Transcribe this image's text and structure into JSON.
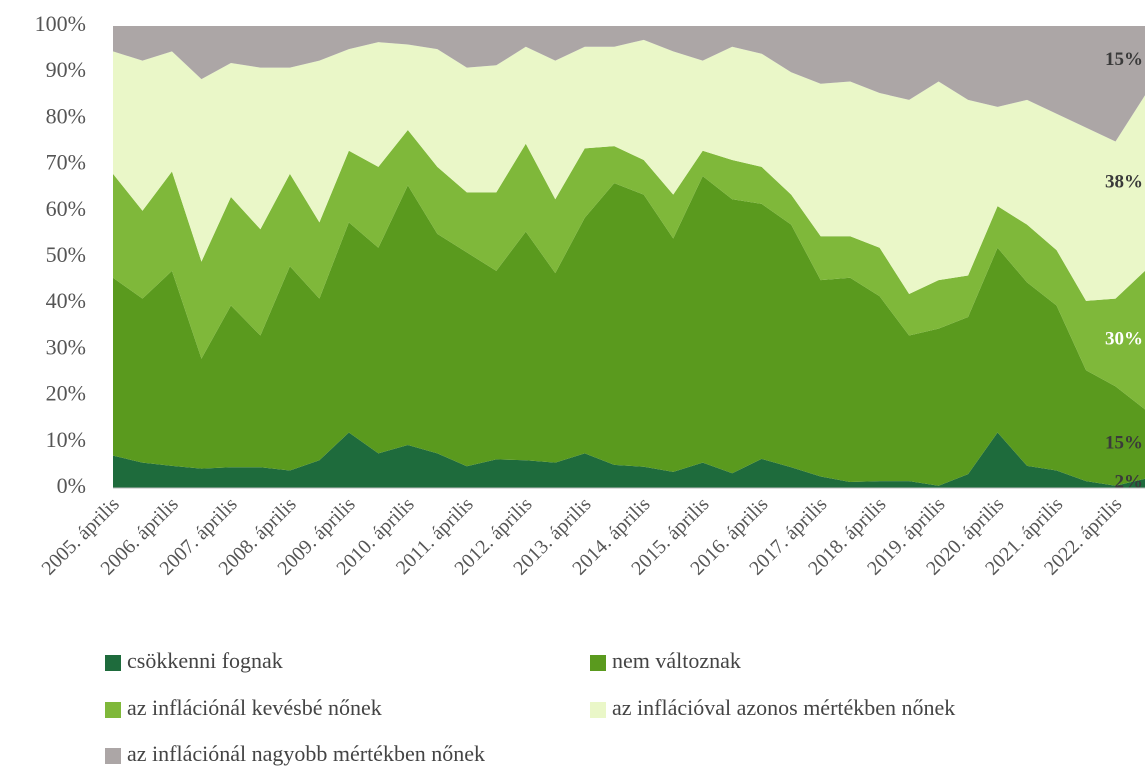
{
  "chart_data": {
    "type": "stacked_area",
    "categories": [
      "2005. április",
      null,
      "2006. április",
      null,
      "2007. április",
      null,
      "2008. április",
      null,
      "2009. április",
      null,
      "2010. április",
      null,
      "2011. április",
      null,
      "2012. április",
      null,
      "2013. április",
      null,
      "2014. április",
      null,
      "2015. április",
      null,
      "2016. április",
      null,
      "2017. április",
      null,
      "2018. április",
      null,
      "2019. április",
      null,
      "2020. április",
      null,
      "2021. április",
      null,
      "2022. április",
      null
    ],
    "series": [
      {
        "name": "csökkenni fognak",
        "color": "#1e6b3c",
        "label_color": "#3a3a3a",
        "values": [
          7,
          5.5,
          4.8,
          4.2,
          4.5,
          4.5,
          3.8,
          6,
          12,
          7.5,
          9.3,
          7.5,
          4.7,
          6.2,
          6,
          5.5,
          7.5,
          5,
          4.6,
          3.5,
          5.5,
          3.2,
          6.3,
          4.5,
          2.5,
          1.3,
          1.5,
          1.5,
          0.5,
          3,
          12,
          4.8,
          3.8,
          1.5,
          0.5,
          2
        ],
        "value_labels": [
          null,
          null,
          null,
          null,
          null,
          null,
          null,
          null,
          null,
          null,
          null,
          null,
          null,
          null,
          null,
          null,
          null,
          null,
          null,
          null,
          null,
          null,
          null,
          null,
          null,
          null,
          null,
          null,
          null,
          null,
          null,
          null,
          null,
          null,
          null,
          "2%"
        ]
      },
      {
        "name": "nem változnak",
        "color": "#5a9a1e",
        "label_color": "#3a3a3a",
        "values": [
          38.5,
          35.5,
          42.2,
          23.8,
          35,
          28.5,
          44.2,
          35,
          45.5,
          44.5,
          56.2,
          47.5,
          46.3,
          40.8,
          49.5,
          41,
          51,
          61,
          58.9,
          50.5,
          62,
          59.3,
          55.2,
          52.5,
          42.5,
          44.2,
          40,
          31.5,
          34,
          34,
          40,
          39.7,
          35.7,
          24,
          21.5,
          15
        ],
        "value_labels": [
          null,
          null,
          null,
          null,
          null,
          null,
          null,
          null,
          null,
          null,
          null,
          null,
          null,
          null,
          null,
          null,
          null,
          null,
          null,
          null,
          null,
          null,
          null,
          null,
          null,
          null,
          null,
          null,
          null,
          null,
          null,
          null,
          null,
          null,
          null,
          "15%"
        ]
      },
      {
        "name": "az inflációnál kevésbé nőnek",
        "color": "#7fb83a",
        "label_color": "#ffffff",
        "values": [
          22.5,
          19,
          21.5,
          21,
          23.5,
          23,
          20,
          16.5,
          15.5,
          17.5,
          12,
          14.5,
          13,
          17,
          19,
          16,
          15,
          8,
          7.5,
          9.5,
          5.5,
          8.5,
          8,
          6.5,
          9.5,
          9,
          10.5,
          9,
          10.5,
          9,
          9,
          12.5,
          12,
          15,
          19,
          30
        ],
        "value_labels": [
          null,
          null,
          null,
          null,
          null,
          null,
          null,
          null,
          null,
          null,
          null,
          null,
          null,
          null,
          null,
          null,
          null,
          null,
          null,
          null,
          null,
          null,
          null,
          null,
          null,
          null,
          null,
          null,
          null,
          null,
          null,
          null,
          null,
          null,
          null,
          "30%"
        ]
      },
      {
        "name": "az inflációval azonos mértékben nőnek",
        "color": "#eaf7c8",
        "label_color": "#3a3a3a",
        "values": [
          26.5,
          32.5,
          26,
          39.5,
          29,
          35,
          23,
          35,
          22,
          27,
          18.5,
          25.5,
          27,
          27.5,
          21,
          30,
          22,
          21.5,
          26,
          31,
          19.5,
          24.5,
          24.5,
          26.5,
          33,
          33.5,
          33.5,
          42,
          43,
          38,
          21.5,
          27,
          29.5,
          37.5,
          34,
          38
        ],
        "value_labels": [
          null,
          null,
          null,
          null,
          null,
          null,
          null,
          null,
          null,
          null,
          null,
          null,
          null,
          null,
          null,
          null,
          null,
          null,
          null,
          null,
          null,
          null,
          null,
          null,
          null,
          null,
          null,
          null,
          null,
          null,
          null,
          null,
          null,
          null,
          null,
          "38%"
        ]
      },
      {
        "name": "az inflációnál nagyobb mértékben nőnek",
        "color": "#aca6a6",
        "label_color": "#3a3a3a",
        "values": [
          5.5,
          7.5,
          5.5,
          11.5,
          8,
          9,
          9,
          7.5,
          5,
          3.5,
          4,
          5,
          9,
          8.5,
          4.5,
          7.5,
          4.5,
          4.5,
          3,
          5.5,
          7.5,
          4.5,
          6,
          10,
          12.5,
          12,
          14.5,
          16,
          12,
          16,
          17.5,
          16,
          19,
          22,
          25,
          15
        ],
        "value_labels": [
          null,
          null,
          null,
          null,
          null,
          null,
          null,
          null,
          null,
          null,
          null,
          null,
          null,
          null,
          null,
          null,
          null,
          null,
          null,
          null,
          null,
          null,
          null,
          null,
          null,
          null,
          null,
          null,
          null,
          null,
          null,
          null,
          null,
          null,
          null,
          "15%"
        ]
      }
    ],
    "ylim": [
      0,
      100
    ],
    "yticks": [
      {
        "value": 0,
        "label": "0%"
      },
      {
        "value": 10,
        "label": "10%"
      },
      {
        "value": 20,
        "label": "20%"
      },
      {
        "value": 30,
        "label": "30%"
      },
      {
        "value": 40,
        "label": "40%"
      },
      {
        "value": 50,
        "label": "50%"
      },
      {
        "value": 60,
        "label": "60%"
      },
      {
        "value": 70,
        "label": "70%"
      },
      {
        "value": 80,
        "label": "80%"
      },
      {
        "value": 90,
        "label": "90%"
      },
      {
        "value": 100,
        "label": "100%"
      }
    ],
    "legend": "bottom"
  }
}
